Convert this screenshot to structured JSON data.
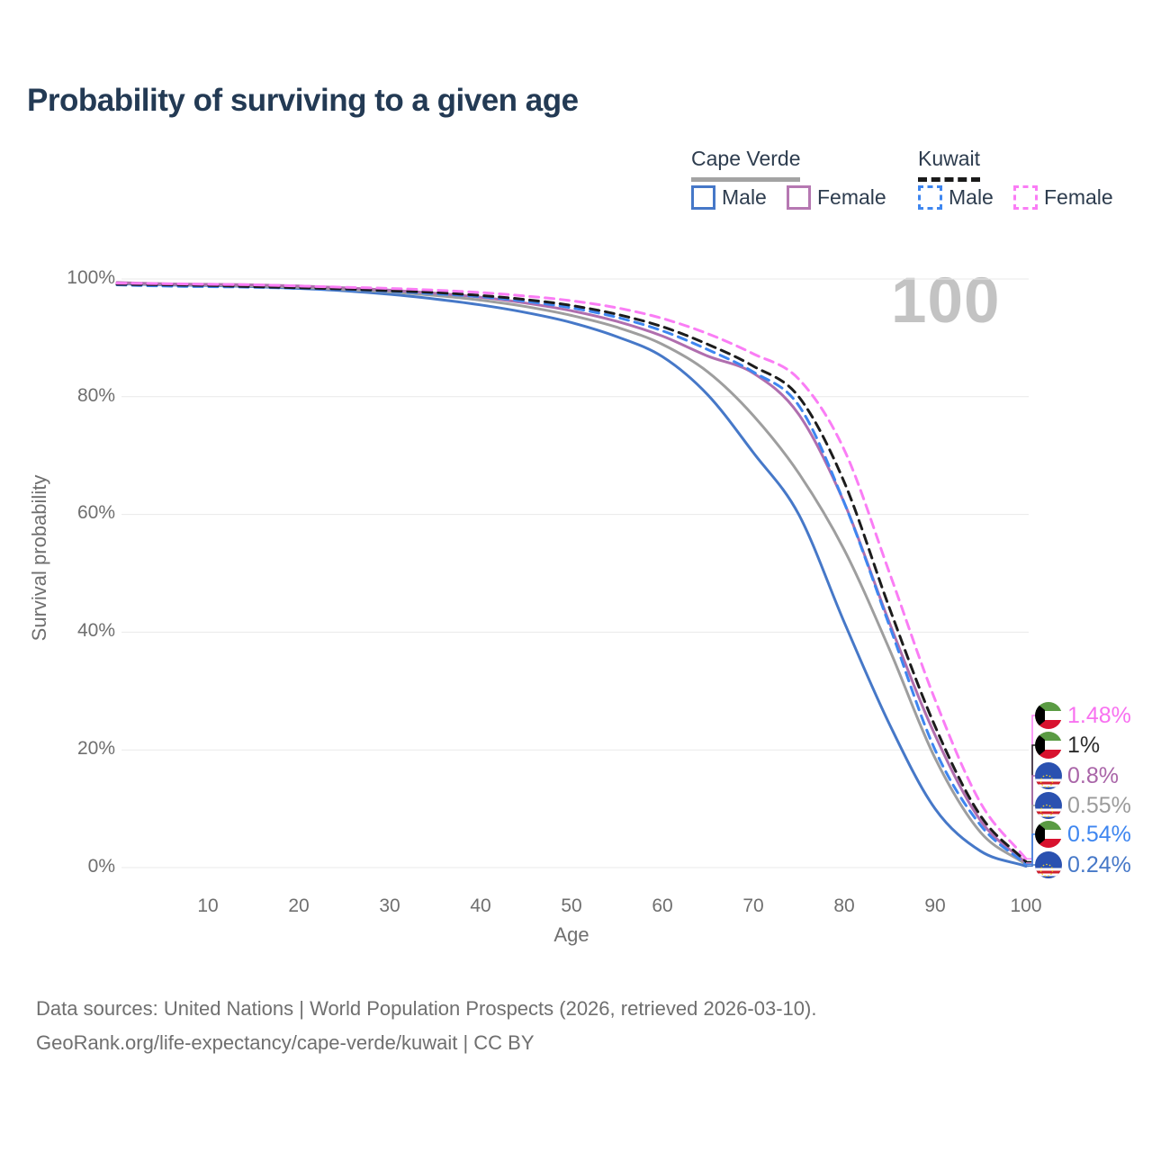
{
  "title": "Probability of surviving to a given age",
  "watermark": "100",
  "legend": {
    "groups": [
      {
        "label": "Cape Verde",
        "underline_color": "#a3a3a3",
        "underline_style": "solid",
        "items": [
          {
            "label": "Male",
            "color": "#4678c8",
            "dash": false
          },
          {
            "label": "Female",
            "color": "#b678b2",
            "dash": false
          }
        ]
      },
      {
        "label": "Kuwait",
        "underline_color": "#1a1a1a",
        "underline_style": "dashed",
        "items": [
          {
            "label": "Male",
            "color": "#3e86f0",
            "dash": true
          },
          {
            "label": "Female",
            "color": "#fa7df5",
            "dash": true
          }
        ]
      }
    ]
  },
  "chart_data": {
    "type": "line",
    "title": "Probability of surviving to a given age",
    "xlabel": "Age",
    "ylabel": "Survival probability",
    "xlim": [
      0,
      100
    ],
    "ylim": [
      0,
      100
    ],
    "grid": "horizontal",
    "x_tick_labels": [
      "10",
      "20",
      "30",
      "40",
      "50",
      "60",
      "70",
      "80",
      "90",
      "100"
    ],
    "y_tick_labels": [
      "100%",
      "80%",
      "60%",
      "40%",
      "20%",
      "0%"
    ],
    "x": [
      0,
      5,
      10,
      15,
      20,
      25,
      30,
      35,
      40,
      45,
      50,
      55,
      60,
      65,
      70,
      75,
      80,
      85,
      90,
      95,
      100
    ],
    "series": [
      {
        "key": "cv_male",
        "name": "Cape Verde Male",
        "color": "#4678c8",
        "dash": false,
        "values": [
          99.2,
          99.0,
          98.9,
          98.7,
          98.4,
          98.0,
          97.4,
          96.6,
          95.6,
          94.3,
          92.6,
          90.2,
          86.8,
          80.3,
          70.5,
          60.0,
          41.7,
          24.3,
          10.0,
          2.8,
          0.24
        ]
      },
      {
        "key": "cv_total",
        "name": "Cape Verde",
        "color": "#9e9e9e",
        "dash": false,
        "values": [
          99.3,
          99.1,
          99.0,
          98.8,
          98.6,
          98.2,
          97.8,
          97.2,
          96.4,
          95.3,
          93.8,
          91.8,
          88.9,
          84.2,
          76.8,
          67.0,
          54.0,
          37.0,
          18.6,
          6.0,
          0.55
        ]
      },
      {
        "key": "cv_female",
        "name": "Cape Verde Female",
        "color": "#b06eae",
        "dash": false,
        "values": [
          99.4,
          99.2,
          99.1,
          99.0,
          98.8,
          98.5,
          98.1,
          97.6,
          96.9,
          95.9,
          94.6,
          92.8,
          90.3,
          86.9,
          84.0,
          77.0,
          62.0,
          41.5,
          22.5,
          8.0,
          0.8
        ]
      },
      {
        "key": "kw_male",
        "name": "Kuwait Male",
        "color": "#3e86f0",
        "dash": true,
        "values": [
          99.0,
          98.8,
          98.7,
          98.6,
          98.4,
          98.2,
          97.9,
          97.5,
          97.0,
          96.2,
          95.1,
          93.5,
          91.2,
          88.0,
          84.2,
          78.5,
          62.0,
          41.0,
          20.0,
          7.2,
          0.54
        ]
      },
      {
        "key": "kw_total",
        "name": "Kuwait",
        "color": "#1c1c1c",
        "dash": true,
        "values": [
          99.1,
          99.0,
          98.9,
          98.7,
          98.5,
          98.3,
          98.0,
          97.7,
          97.2,
          96.5,
          95.5,
          94.0,
          91.9,
          88.9,
          85.2,
          80.0,
          65.5,
          44.0,
          24.0,
          8.8,
          1.0
        ]
      },
      {
        "key": "kw_female",
        "name": "Kuwait Female",
        "color": "#fa7df5",
        "dash": true,
        "values": [
          99.3,
          99.2,
          99.1,
          99.0,
          98.8,
          98.6,
          98.4,
          98.1,
          97.7,
          97.1,
          96.3,
          95.1,
          93.3,
          90.7,
          87.3,
          83.0,
          71.0,
          50.0,
          28.5,
          11.0,
          1.48
        ]
      }
    ]
  },
  "end_labels": [
    {
      "value": "1.48%",
      "flag": "kuwait",
      "series": "kw_female",
      "color": "#f871f0"
    },
    {
      "value": "1%",
      "flag": "kuwait",
      "series": "kw_total",
      "color": "#2b2b2b"
    },
    {
      "value": "0.8%",
      "flag": "cape-verde",
      "series": "cv_female",
      "color": "#a965a8"
    },
    {
      "value": "0.55%",
      "flag": "cape-verde",
      "series": "cv_total",
      "color": "#9b9b9b"
    },
    {
      "value": "0.54%",
      "flag": "kuwait",
      "series": "kw_male",
      "color": "#3e86f0"
    },
    {
      "value": "0.24%",
      "flag": "cape-verde",
      "series": "cv_male",
      "color": "#4678c8"
    }
  ],
  "footer": {
    "line1": "Data sources: United Nations | World Population Prospects (2026, retrieved 2026-03-10).",
    "line2": "GeoRank.org/life-expectancy/cape-verde/kuwait | CC BY"
  }
}
